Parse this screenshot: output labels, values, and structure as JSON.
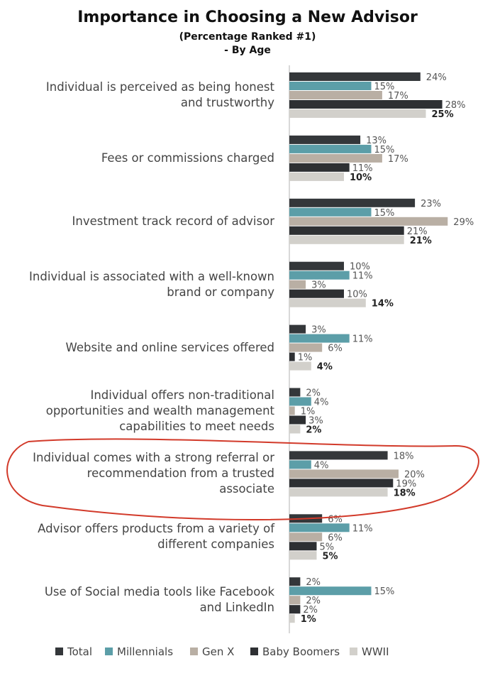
{
  "chart_data": {
    "type": "bar",
    "orientation": "horizontal",
    "title": "Importance in Choosing a New Advisor",
    "subtitle": "(Percentage Ranked #1)",
    "subtitle2": "- By Age",
    "categories": [
      "Individual is perceived as being honest and trustworthy",
      "Fees or commissions charged",
      "Investment track record of advisor",
      "Individual is associated with a well-known brand or company",
      "Website and online services offered",
      "Individual offers non-traditional opportunities and wealth management capabilities to meet needs",
      "Individual comes with a strong referral or recommendation from a trusted associate",
      "Advisor offers products from a variety of different companies",
      "Use of Social media tools like Facebook and LinkedIn"
    ],
    "category_lines": [
      [
        "Individual is perceived as being honest",
        "and trustworthy"
      ],
      [
        "Fees or commissions charged"
      ],
      [
        "Investment track record of advisor"
      ],
      [
        "Individual is associated with a well-known",
        "brand or company"
      ],
      [
        "Website and online services offered"
      ],
      [
        "Individual offers non-traditional",
        "opportunities and wealth management",
        "capabilities to meet needs"
      ],
      [
        "Individual comes with a strong referral or",
        "recommendation from a trusted",
        "associate"
      ],
      [
        "Advisor offers products from a variety of",
        "different companies"
      ],
      [
        "Use of Social media tools like Facebook",
        "and LinkedIn"
      ]
    ],
    "series": [
      {
        "name": "Total",
        "color": "#34373a",
        "values": [
          24,
          13,
          23,
          10,
          3,
          2,
          18,
          6,
          2
        ]
      },
      {
        "name": "Millennials",
        "color": "#5c9ea8",
        "values": [
          15,
          15,
          15,
          11,
          11,
          4,
          4,
          11,
          15
        ]
      },
      {
        "name": "Gen X",
        "color": "#b9afa4",
        "values": [
          17,
          17,
          29,
          3,
          6,
          1,
          20,
          6,
          2
        ]
      },
      {
        "name": "Baby Boomers",
        "color": "#2e3033",
        "values": [
          28,
          11,
          21,
          10,
          1,
          3,
          19,
          5,
          2
        ]
      },
      {
        "name": "WWII",
        "color": "#d2d0cb",
        "values": [
          25,
          10,
          21,
          14,
          4,
          2,
          18,
          5,
          1
        ]
      }
    ],
    "value_suffix": "%",
    "legend_position": "bottom",
    "grid": false,
    "annotation": {
      "type": "hand-drawn ellipse",
      "color": "#d23a2a",
      "highlights": "Individual comes with a strong referral or recommendation from a trusted associate"
    }
  }
}
